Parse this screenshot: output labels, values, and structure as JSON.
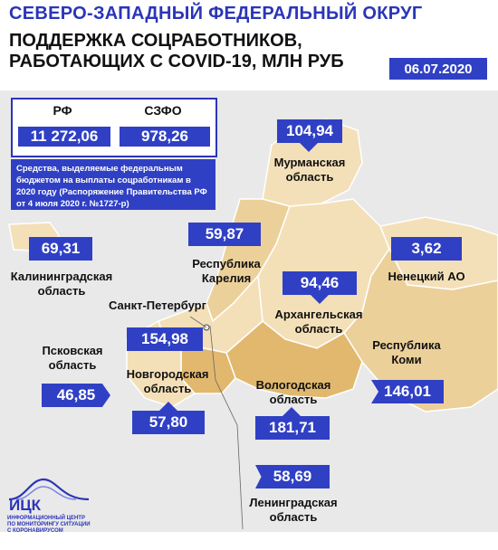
{
  "header": {
    "title_line1": "СЕВЕРО-ЗАПАДНЫЙ ФЕДЕРАЛЬНЫЙ ОКРУГ",
    "title_line2": "ПОДДЕРЖКА СОЦРАБОТНИКОВ,",
    "title_line3": "РАБОТАЮЩИХ С COVID-19, МЛН РУБ",
    "date": "06.07.2020"
  },
  "summary": {
    "rf_label": "РФ",
    "rf_value": "11 272,06",
    "szfo_label": "СЗФО",
    "szfo_value": "978,26",
    "note": "Средства, выделяемые федеральным бюджетом на выплаты соцработникам в 2020 году (Распоряжение Правительства РФ от 4 июля 2020 г. №1727-р)"
  },
  "regions": {
    "murmansk": {
      "name_1": "Мурманская",
      "name_2": "область",
      "value": "104,94"
    },
    "karelia": {
      "name_1": "Республика",
      "name_2": "Карелия",
      "value": "59,87"
    },
    "nenets": {
      "name_1": "Ненецкий АО",
      "value": "3,62"
    },
    "kaliningrad": {
      "name_1": "Калининградская",
      "name_2": "область",
      "value": "69,31"
    },
    "arkhangelsk": {
      "name_1": "Архангельская",
      "name_2": "область",
      "value": "94,46"
    },
    "spb": {
      "name_1": "Санкт-Петербург",
      "value": "154,98"
    },
    "pskov": {
      "name_1": "Псковская",
      "name_2": "область",
      "value": "46,85"
    },
    "novgorod": {
      "name_1": "Новгородская",
      "name_2": "область",
      "value": "57,80"
    },
    "komi": {
      "name_1": "Республика",
      "name_2": "Коми",
      "value": "146,01"
    },
    "vologda": {
      "name_1": "Вологодская",
      "name_2": "область",
      "value": "181,71"
    },
    "leningrad": {
      "name_1": "Ленинградская",
      "name_2": "область",
      "value": "58,69"
    }
  },
  "logo": {
    "name": "ИЦК",
    "tagline_1": "ИНФОРМАЦИОННЫЙ ЦЕНТР",
    "tagline_2": "ПО МОНИТОРИНГУ СИТУАЦИИ",
    "tagline_3": "С КОРОНАВИРУСОМ"
  },
  "colors": {
    "accent": "#3040c4",
    "map_light": "#f4e0b8",
    "map_mid": "#ecd09a",
    "map_dark": "#e2b86e"
  }
}
